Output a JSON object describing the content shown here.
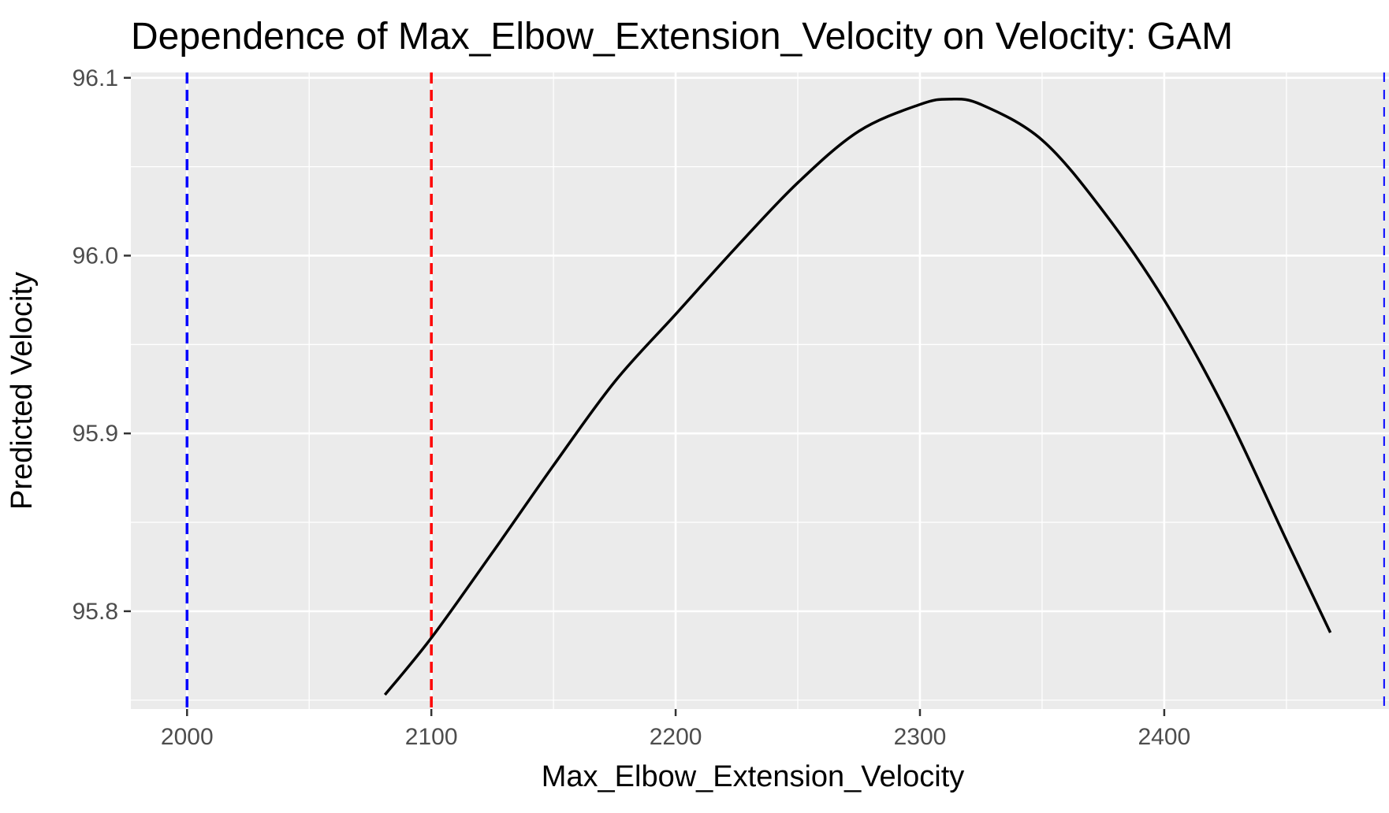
{
  "chart_data": {
    "type": "line",
    "title": "Dependence of Max_Elbow_Extension_Velocity on Velocity: GAM",
    "xlabel": "Max_Elbow_Extension_Velocity",
    "ylabel": "Predicted Velocity",
    "xlim": [
      1977,
      2492
    ],
    "ylim": [
      95.745,
      96.103
    ],
    "x_ticks": [
      2000,
      2100,
      2200,
      2300,
      2400
    ],
    "x_tick_labels": [
      "2000",
      "2100",
      "2200",
      "2300",
      "2400"
    ],
    "y_ticks": [
      95.8,
      95.9,
      96.0,
      96.1
    ],
    "y_tick_labels": [
      "95.8",
      "95.9",
      "96.0",
      "96.1"
    ],
    "grid": true,
    "legend": "none",
    "colors": {
      "panel": "#EBEBEB",
      "grid": "#FFFFFF",
      "curve": "#000000",
      "vline_blue": "#0000FF",
      "vline_red": "#FF0000"
    },
    "series": [
      {
        "x": [
          2081,
          2100,
          2125,
          2150,
          2175,
          2200,
          2225,
          2250,
          2275,
          2300,
          2312,
          2325,
          2350,
          2375,
          2400,
          2425,
          2450,
          2468
        ],
        "values": [
          95.753,
          95.785,
          95.833,
          95.882,
          95.929,
          95.967,
          96.005,
          96.041,
          96.07,
          96.085,
          96.088,
          96.085,
          96.065,
          96.025,
          95.975,
          95.913,
          95.84,
          95.788
        ]
      }
    ],
    "reference_lines": [
      {
        "x": 2000,
        "color": "#0000FF",
        "style": "dashed"
      },
      {
        "x": 2100,
        "color": "#FF0000",
        "style": "dashed"
      },
      {
        "x": 2490,
        "color": "#0000FF",
        "style": "dashed"
      }
    ]
  }
}
